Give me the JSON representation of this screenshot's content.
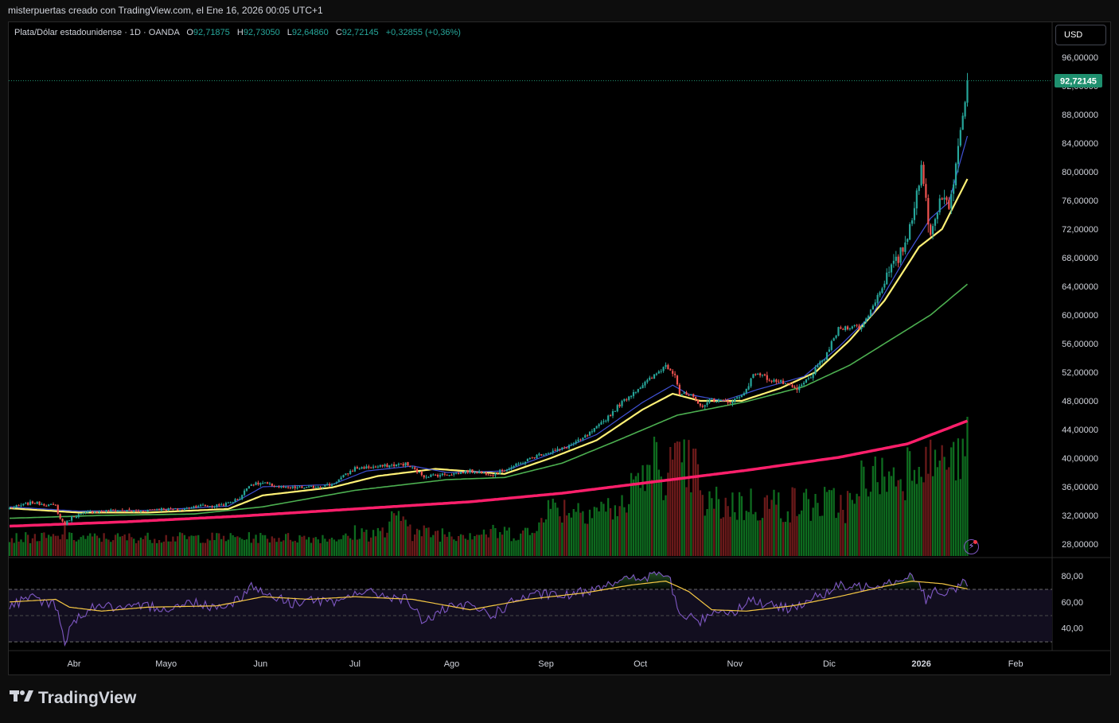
{
  "header": {
    "byline": "misterpuertas creado con TradingView.com, el Ene 16, 2026 00:05 UTC+1"
  },
  "legend": {
    "symbol": "Plata/Dólar estadounidense · 1D · OANDA",
    "open_label": "O",
    "open": "92,71875",
    "high_label": "H",
    "high": "92,73050",
    "low_label": "L",
    "low": "92,64860",
    "close_label": "C",
    "close": "92,72145",
    "change": "+0,32855 (+0,36%)"
  },
  "currency_button": "USD",
  "price_tag": "92,72145",
  "brand": "TradingView",
  "colors": {
    "up": "#26a69a",
    "down": "#ef5350",
    "vol_up": "#0e6b1f",
    "vol_down": "#6b1a1a",
    "ma_blue": "#3f51d4",
    "ma_yellow": "#fff176",
    "ma_green": "#4caf50",
    "ma_pink": "#ff1f6b",
    "rsi": "#7e57c2",
    "rsi_ma": "#f6c844",
    "tag": "#1e8f6e"
  },
  "chart_data": [
    {
      "type": "candlestick",
      "title": "Plata/Dólar estadounidense · 1D · OANDA",
      "x_ticks": [
        "Abr",
        "Mayo",
        "Jun",
        "Jul",
        "Ago",
        "Sep",
        "Oct",
        "Nov",
        "Dic",
        "2026",
        "Feb"
      ],
      "y_ticks": [
        "96,00000",
        "92,00000",
        "88,00000",
        "84,00000",
        "80,00000",
        "76,00000",
        "72,00000",
        "68,00000",
        "64,00000",
        "60,00000",
        "56,00000",
        "52,00000",
        "48,00000",
        "44,00000",
        "40,00000",
        "36,00000",
        "32,00000",
        "28,00000"
      ],
      "ylim": [
        26.6,
        99.4
      ],
      "last_price": 92.72145,
      "close_anchors": [
        [
          0,
          33.0
        ],
        [
          10,
          33.8
        ],
        [
          20,
          33.3
        ],
        [
          22,
          31.5
        ],
        [
          24,
          30.8
        ],
        [
          27,
          31.8
        ],
        [
          35,
          32.5
        ],
        [
          45,
          32.7
        ],
        [
          55,
          32.6
        ],
        [
          65,
          32.9
        ],
        [
          75,
          32.8
        ],
        [
          82,
          33.4
        ],
        [
          88,
          33.3
        ],
        [
          94,
          33.6
        ],
        [
          100,
          34.4
        ],
        [
          104,
          36.3
        ],
        [
          110,
          36.5
        ],
        [
          120,
          35.8
        ],
        [
          130,
          35.9
        ],
        [
          140,
          36.3
        ],
        [
          150,
          38.6
        ],
        [
          160,
          38.8
        ],
        [
          172,
          39.2
        ],
        [
          180,
          37.5
        ],
        [
          192,
          37.8
        ],
        [
          200,
          38.2
        ],
        [
          210,
          37.8
        ],
        [
          220,
          39.0
        ],
        [
          230,
          40.5
        ],
        [
          240,
          41.3
        ],
        [
          248,
          42.5
        ],
        [
          256,
          44.5
        ],
        [
          265,
          47.5
        ],
        [
          272,
          49.5
        ],
        [
          280,
          51.5
        ],
        [
          285,
          53.0
        ],
        [
          289,
          51.8
        ],
        [
          291,
          49.0
        ],
        [
          296,
          48.7
        ],
        [
          300,
          47.2
        ],
        [
          305,
          48.2
        ],
        [
          312,
          47.8
        ],
        [
          318,
          48.7
        ],
        [
          324,
          52.0
        ],
        [
          330,
          51.0
        ],
        [
          336,
          50.5
        ],
        [
          342,
          49.5
        ],
        [
          348,
          51.5
        ],
        [
          354,
          54.0
        ],
        [
          360,
          58.0
        ],
        [
          366,
          58.5
        ],
        [
          370,
          58.2
        ],
        [
          376,
          62.0
        ],
        [
          382,
          66.0
        ],
        [
          386,
          67.8
        ],
        [
          390,
          71.0
        ],
        [
          392,
          74.0
        ],
        [
          394,
          77.5
        ],
        [
          396,
          80.0
        ],
        [
          398,
          76.0
        ],
        [
          400,
          71.0
        ],
        [
          402,
          74.0
        ],
        [
          405,
          77.0
        ],
        [
          408,
          74.5
        ],
        [
          410,
          79.0
        ],
        [
          412,
          84.5
        ],
        [
          414,
          89.0
        ],
        [
          416,
          92.7
        ]
      ],
      "ma_blue": [
        [
          0,
          33.2
        ],
        [
          30,
          32.6
        ],
        [
          60,
          32.7
        ],
        [
          95,
          33.3
        ],
        [
          110,
          36.0
        ],
        [
          140,
          36.3
        ],
        [
          155,
          38.2
        ],
        [
          175,
          38.9
        ],
        [
          190,
          38.0
        ],
        [
          215,
          38.2
        ],
        [
          235,
          40.6
        ],
        [
          255,
          43.3
        ],
        [
          275,
          47.8
        ],
        [
          288,
          50.2
        ],
        [
          295,
          48.9
        ],
        [
          310,
          48.0
        ],
        [
          325,
          49.6
        ],
        [
          345,
          51.4
        ],
        [
          360,
          55.5
        ],
        [
          375,
          60.2
        ],
        [
          390,
          68.5
        ],
        [
          400,
          73.5
        ],
        [
          408,
          75.8
        ],
        [
          416,
          85.0
        ]
      ],
      "ma_yellow": [
        [
          0,
          33.0
        ],
        [
          30,
          32.4
        ],
        [
          60,
          32.4
        ],
        [
          95,
          32.9
        ],
        [
          110,
          34.8
        ],
        [
          140,
          35.9
        ],
        [
          160,
          37.5
        ],
        [
          185,
          38.5
        ],
        [
          215,
          37.8
        ],
        [
          235,
          40.0
        ],
        [
          255,
          42.5
        ],
        [
          275,
          46.8
        ],
        [
          288,
          49.0
        ],
        [
          300,
          48.0
        ],
        [
          318,
          48.0
        ],
        [
          335,
          49.8
        ],
        [
          350,
          52.0
        ],
        [
          365,
          56.5
        ],
        [
          380,
          62.0
        ],
        [
          395,
          69.5
        ],
        [
          405,
          72.0
        ],
        [
          416,
          79.0
        ]
      ],
      "ma_green": [
        [
          0,
          31.6
        ],
        [
          40,
          32.0
        ],
        [
          80,
          32.2
        ],
        [
          110,
          33.2
        ],
        [
          150,
          35.5
        ],
        [
          190,
          37.0
        ],
        [
          215,
          37.3
        ],
        [
          240,
          39.3
        ],
        [
          265,
          42.6
        ],
        [
          290,
          46.0
        ],
        [
          320,
          47.9
        ],
        [
          345,
          50.0
        ],
        [
          365,
          53.0
        ],
        [
          385,
          57.0
        ],
        [
          400,
          60.0
        ],
        [
          416,
          64.3
        ]
      ],
      "ma_pink": [
        [
          0,
          30.5
        ],
        [
          50,
          31.1
        ],
        [
          100,
          31.9
        ],
        [
          150,
          32.9
        ],
        [
          200,
          33.9
        ],
        [
          240,
          35.1
        ],
        [
          280,
          36.7
        ],
        [
          320,
          38.3
        ],
        [
          360,
          40.1
        ],
        [
          390,
          42.0
        ],
        [
          416,
          45.2
        ]
      ],
      "series": [
        {
          "name": "Volumen"
        }
      ]
    },
    {
      "type": "line",
      "title": "RSI",
      "y_ticks": [
        "80,00",
        "60,00",
        "40,00"
      ],
      "ylim": [
        23,
        85
      ],
      "bands": [
        70,
        50,
        30
      ],
      "rsi_anchors": [
        [
          0,
          57
        ],
        [
          10,
          63
        ],
        [
          20,
          58
        ],
        [
          22,
          42
        ],
        [
          24,
          30
        ],
        [
          28,
          46
        ],
        [
          38,
          58
        ],
        [
          50,
          54
        ],
        [
          60,
          57
        ],
        [
          70,
          55
        ],
        [
          80,
          60
        ],
        [
          90,
          56
        ],
        [
          100,
          62
        ],
        [
          104,
          73
        ],
        [
          112,
          66
        ],
        [
          122,
          59
        ],
        [
          132,
          62
        ],
        [
          142,
          58
        ],
        [
          150,
          68
        ],
        [
          160,
          66
        ],
        [
          172,
          62
        ],
        [
          180,
          45
        ],
        [
          190,
          55
        ],
        [
          200,
          57
        ],
        [
          210,
          50
        ],
        [
          220,
          62
        ],
        [
          232,
          66
        ],
        [
          240,
          64
        ],
        [
          250,
          68
        ],
        [
          262,
          76
        ],
        [
          274,
          78
        ],
        [
          284,
          82
        ],
        [
          287,
          75
        ],
        [
          291,
          50
        ],
        [
          296,
          48
        ],
        [
          300,
          45
        ],
        [
          306,
          54
        ],
        [
          314,
          52
        ],
        [
          322,
          62
        ],
        [
          330,
          57
        ],
        [
          338,
          55
        ],
        [
          348,
          62
        ],
        [
          354,
          66
        ],
        [
          360,
          72
        ],
        [
          368,
          71
        ],
        [
          376,
          74
        ],
        [
          384,
          76
        ],
        [
          388,
          79
        ],
        [
          392,
          80
        ],
        [
          396,
          72
        ],
        [
          398,
          62
        ],
        [
          402,
          68
        ],
        [
          406,
          64
        ],
        [
          410,
          70
        ],
        [
          414,
          75
        ],
        [
          416,
          74
        ]
      ],
      "rsi_ma_anchors": [
        [
          0,
          60
        ],
        [
          20,
          62
        ],
        [
          26,
          56
        ],
        [
          40,
          53
        ],
        [
          60,
          56
        ],
        [
          90,
          57
        ],
        [
          110,
          64
        ],
        [
          130,
          62
        ],
        [
          150,
          64
        ],
        [
          175,
          62
        ],
        [
          200,
          54
        ],
        [
          225,
          62
        ],
        [
          250,
          67
        ],
        [
          270,
          73
        ],
        [
          285,
          76
        ],
        [
          295,
          68
        ],
        [
          305,
          54
        ],
        [
          320,
          53
        ],
        [
          340,
          57
        ],
        [
          360,
          64
        ],
        [
          380,
          72
        ],
        [
          392,
          76
        ],
        [
          405,
          74
        ],
        [
          416,
          70
        ]
      ]
    }
  ]
}
